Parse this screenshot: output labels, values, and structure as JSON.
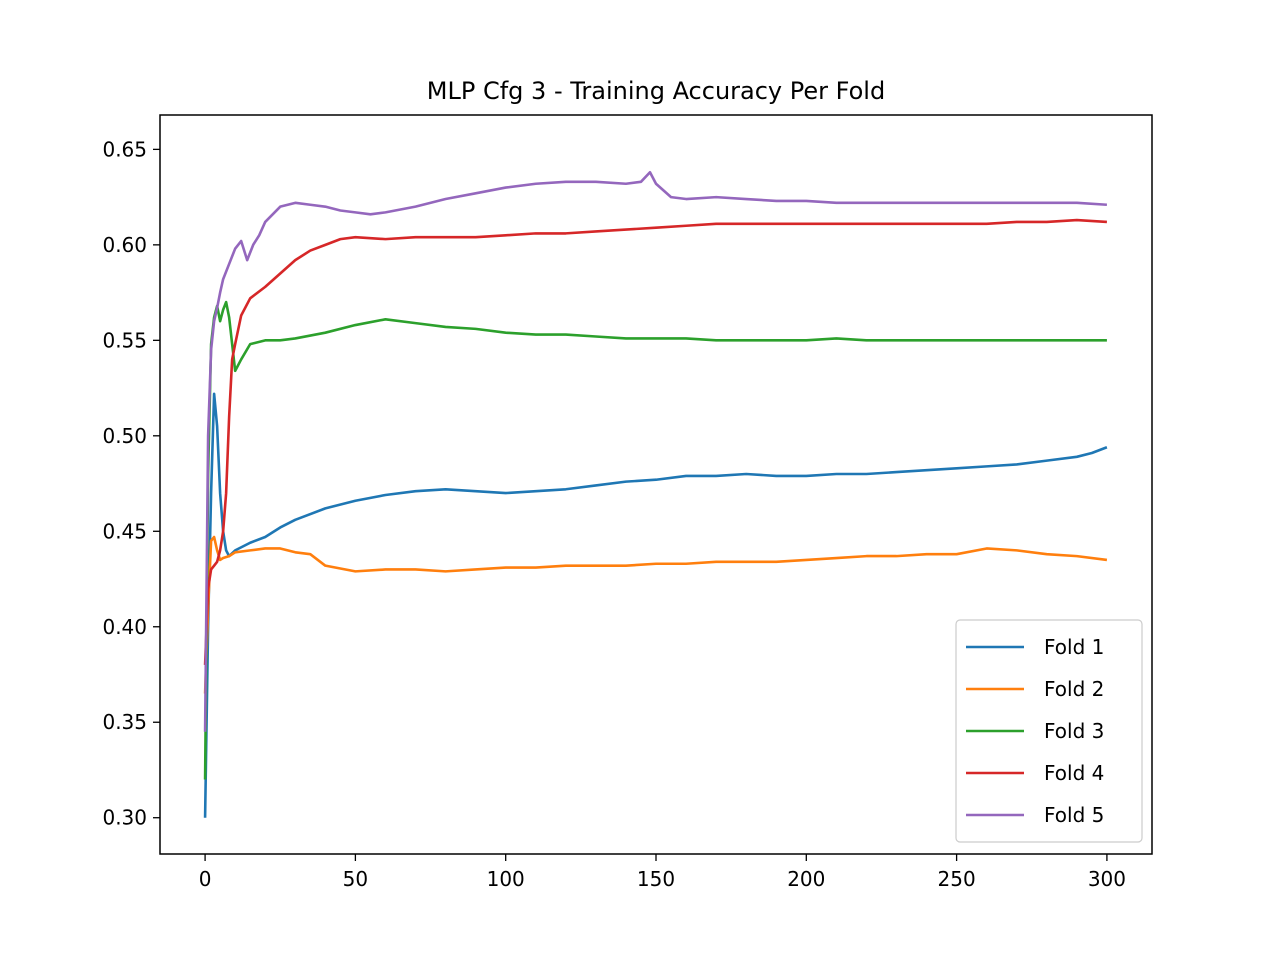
{
  "chart_data": {
    "type": "line",
    "title": "MLP Cfg 3 - Training Accuracy Per Fold",
    "xlabel": "",
    "ylabel": "",
    "xlim": [
      -15,
      315
    ],
    "ylim": [
      0.281,
      0.668
    ],
    "xticks": [
      0,
      50,
      100,
      150,
      200,
      250,
      300
    ],
    "xtick_labels": [
      "0",
      "50",
      "100",
      "150",
      "200",
      "250",
      "300"
    ],
    "yticks": [
      0.3,
      0.35,
      0.4,
      0.45,
      0.5,
      0.55,
      0.6,
      0.65
    ],
    "ytick_labels": [
      "0.30",
      "0.35",
      "0.40",
      "0.45",
      "0.50",
      "0.55",
      "0.60",
      "0.65"
    ],
    "grid": false,
    "legend_position": "lower-right",
    "series": [
      {
        "name": "Fold 1",
        "color": "#1f77b4",
        "x": [
          0,
          1,
          2,
          3,
          4,
          5,
          6,
          7,
          8,
          10,
          15,
          20,
          25,
          30,
          40,
          50,
          60,
          70,
          80,
          90,
          100,
          110,
          120,
          130,
          140,
          150,
          160,
          170,
          180,
          190,
          200,
          210,
          220,
          230,
          240,
          250,
          260,
          270,
          280,
          290,
          295,
          300
        ],
        "y": [
          0.3,
          0.4,
          0.47,
          0.522,
          0.505,
          0.47,
          0.45,
          0.44,
          0.437,
          0.44,
          0.444,
          0.447,
          0.452,
          0.456,
          0.462,
          0.466,
          0.469,
          0.471,
          0.472,
          0.471,
          0.47,
          0.471,
          0.472,
          0.474,
          0.476,
          0.477,
          0.479,
          0.479,
          0.48,
          0.479,
          0.479,
          0.48,
          0.48,
          0.481,
          0.482,
          0.483,
          0.484,
          0.485,
          0.487,
          0.489,
          0.491,
          0.494
        ]
      },
      {
        "name": "Fold 2",
        "color": "#ff7f0e",
        "x": [
          0,
          1,
          2,
          3,
          4,
          5,
          6,
          8,
          10,
          15,
          20,
          25,
          30,
          35,
          40,
          50,
          60,
          70,
          80,
          90,
          100,
          110,
          120,
          130,
          140,
          150,
          160,
          170,
          180,
          190,
          200,
          210,
          220,
          230,
          240,
          250,
          260,
          270,
          280,
          290,
          300
        ],
        "y": [
          0.365,
          0.41,
          0.445,
          0.447,
          0.44,
          0.435,
          0.436,
          0.437,
          0.439,
          0.44,
          0.441,
          0.441,
          0.439,
          0.438,
          0.432,
          0.429,
          0.43,
          0.43,
          0.429,
          0.43,
          0.431,
          0.431,
          0.432,
          0.432,
          0.432,
          0.433,
          0.433,
          0.434,
          0.434,
          0.434,
          0.435,
          0.436,
          0.437,
          0.437,
          0.438,
          0.438,
          0.441,
          0.44,
          0.438,
          0.437,
          0.435
        ]
      },
      {
        "name": "Fold 3",
        "color": "#2ca02c",
        "x": [
          0,
          1,
          2,
          3,
          4,
          5,
          6,
          7,
          8,
          9,
          10,
          12,
          15,
          20,
          25,
          30,
          40,
          50,
          60,
          70,
          80,
          90,
          100,
          110,
          120,
          130,
          140,
          150,
          160,
          170,
          180,
          190,
          200,
          210,
          220,
          230,
          240,
          250,
          260,
          270,
          280,
          290,
          300
        ],
        "y": [
          0.32,
          0.48,
          0.548,
          0.562,
          0.568,
          0.56,
          0.566,
          0.57,
          0.562,
          0.548,
          0.534,
          0.54,
          0.548,
          0.55,
          0.55,
          0.551,
          0.554,
          0.558,
          0.561,
          0.559,
          0.557,
          0.556,
          0.554,
          0.553,
          0.553,
          0.552,
          0.551,
          0.551,
          0.551,
          0.55,
          0.55,
          0.55,
          0.55,
          0.551,
          0.55,
          0.55,
          0.55,
          0.55,
          0.55,
          0.55,
          0.55,
          0.55,
          0.55
        ]
      },
      {
        "name": "Fold 4",
        "color": "#d62728",
        "x": [
          0,
          1,
          2,
          3,
          4,
          5,
          6,
          7,
          8,
          9,
          10,
          12,
          15,
          20,
          25,
          30,
          35,
          40,
          45,
          50,
          60,
          70,
          80,
          90,
          100,
          110,
          120,
          130,
          140,
          150,
          160,
          170,
          180,
          190,
          200,
          210,
          220,
          230,
          240,
          250,
          260,
          270,
          280,
          290,
          300
        ],
        "y": [
          0.38,
          0.42,
          0.43,
          0.432,
          0.434,
          0.44,
          0.45,
          0.47,
          0.51,
          0.54,
          0.548,
          0.563,
          0.572,
          0.578,
          0.585,
          0.592,
          0.597,
          0.6,
          0.603,
          0.604,
          0.603,
          0.604,
          0.604,
          0.604,
          0.605,
          0.606,
          0.606,
          0.607,
          0.608,
          0.609,
          0.61,
          0.611,
          0.611,
          0.611,
          0.611,
          0.611,
          0.611,
          0.611,
          0.611,
          0.611,
          0.611,
          0.612,
          0.612,
          0.613,
          0.612
        ]
      },
      {
        "name": "Fold 5",
        "color": "#9467bd",
        "x": [
          0,
          1,
          2,
          3,
          4,
          5,
          6,
          8,
          10,
          12,
          14,
          16,
          18,
          20,
          25,
          30,
          35,
          40,
          45,
          50,
          55,
          60,
          70,
          80,
          90,
          100,
          110,
          120,
          130,
          140,
          145,
          148,
          150,
          155,
          160,
          170,
          180,
          190,
          200,
          210,
          220,
          230,
          240,
          250,
          260,
          270,
          280,
          290,
          300
        ],
        "y": [
          0.345,
          0.5,
          0.545,
          0.56,
          0.567,
          0.575,
          0.582,
          0.59,
          0.598,
          0.602,
          0.592,
          0.6,
          0.605,
          0.612,
          0.62,
          0.622,
          0.621,
          0.62,
          0.618,
          0.617,
          0.616,
          0.617,
          0.62,
          0.624,
          0.627,
          0.63,
          0.632,
          0.633,
          0.633,
          0.632,
          0.633,
          0.638,
          0.632,
          0.625,
          0.624,
          0.625,
          0.624,
          0.623,
          0.623,
          0.622,
          0.622,
          0.622,
          0.622,
          0.622,
          0.622,
          0.622,
          0.622,
          0.622,
          0.621
        ]
      }
    ]
  }
}
